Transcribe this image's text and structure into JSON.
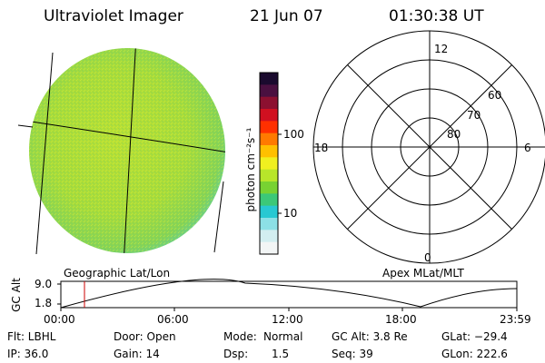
{
  "header": {
    "title": "Ultraviolet Imager",
    "date": "21 Jun 07",
    "time": "01:30:38 UT"
  },
  "colorbar": {
    "unit_label": "photon cm⁻²s⁻¹",
    "ticks": [
      "100",
      "10"
    ],
    "colors": [
      "#1a0a2e",
      "#4a1040",
      "#8c1030",
      "#d01020",
      "#ff3000",
      "#ff7a00",
      "#ffc000",
      "#f0f020",
      "#b8e62a",
      "#78d232",
      "#3cc878",
      "#28c8d2",
      "#8ce0e6",
      "#d2eef0",
      "#f2f5f5"
    ]
  },
  "polar_plot": {
    "rings": [
      "60",
      "70",
      "80"
    ],
    "clock": {
      "top": "12",
      "left": "18",
      "right": "6",
      "bottom": "0"
    }
  },
  "image_labels": {
    "left": "Geographic Lat/Lon",
    "right": "Apex MLat/MLT"
  },
  "altitude_plot": {
    "axis_label": "GC Alt",
    "y_ticks": [
      "9.0",
      "1.8"
    ],
    "x_ticks": [
      "00:00",
      "06:00",
      "12:00",
      "18:00",
      "23:59"
    ],
    "marker_time": "01:30",
    "marker_color": "#cc0000"
  },
  "info": {
    "filter": "Flt: LBHL",
    "ip": "IP: 36.0",
    "door": "Door: Open",
    "gain": "Gain: 14",
    "mode_label": "Mode:",
    "mode_value": "Normal",
    "dsp_label": "Dsp:",
    "dsp_value": "1.5",
    "gc_alt": "GC Alt: 3.8 Re",
    "seq": "Seq: 39",
    "glat": "GLat: −29.4",
    "glon": "GLon: 222.6"
  }
}
